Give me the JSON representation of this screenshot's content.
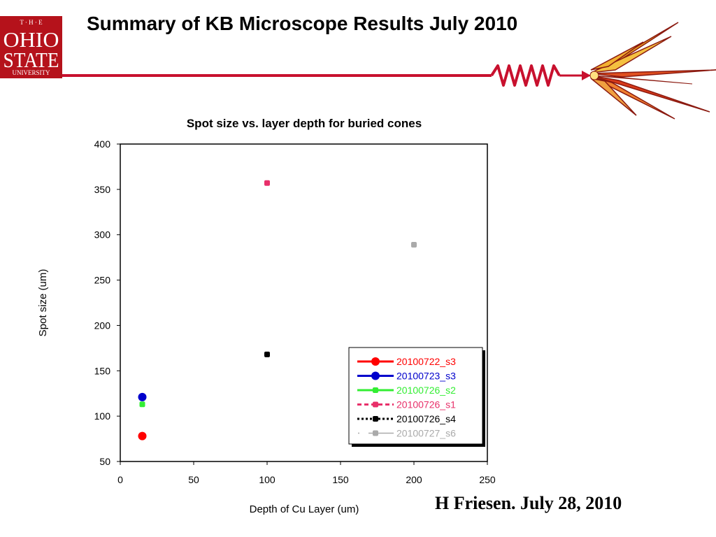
{
  "slide": {
    "title": "Summary of KB Microscope Results July 2010",
    "footer": "H Friesen. July 28, 2010",
    "logo": {
      "line1": "T · H · E",
      "line2": "OHIO",
      "line3": "STATE",
      "line4": "UNIVERSITY",
      "color": "#b5121b"
    },
    "accent_color": "#c8102e"
  },
  "chart_data": {
    "type": "scatter",
    "title": "Spot size vs. layer depth for buried cones",
    "xlabel": "Depth of Cu Layer (um)",
    "ylabel": "Spot size (um)",
    "xlim": [
      0,
      250
    ],
    "ylim": [
      50,
      400
    ],
    "xticks": [
      0,
      50,
      100,
      150,
      200,
      250
    ],
    "yticks": [
      50,
      100,
      150,
      200,
      250,
      300,
      350,
      400
    ],
    "grid": false,
    "legend_position": "bottom-right",
    "series": [
      {
        "name": "20100722_s3",
        "color": "#ff0000",
        "line": "solid",
        "marker": "circle-large",
        "points": [
          [
            15,
            78
          ]
        ]
      },
      {
        "name": "20100723_s3",
        "color": "#0000cc",
        "line": "solid",
        "marker": "circle-large",
        "points": [
          [
            15,
            121
          ]
        ]
      },
      {
        "name": "20100726_s2",
        "color": "#33ee33",
        "line": "solid",
        "marker": "square-small",
        "points": [
          [
            15,
            113
          ]
        ]
      },
      {
        "name": "20100726_s1",
        "color": "#e8306a",
        "line": "dashed",
        "marker": "square-small",
        "points": [
          [
            100,
            357
          ]
        ]
      },
      {
        "name": "20100726_s4",
        "color": "#000000",
        "line": "dotted",
        "marker": "square-small",
        "points": [
          [
            100,
            168
          ]
        ]
      },
      {
        "name": "20100727_s6",
        "color": "#aaaaaa",
        "line": "dot-solid",
        "marker": "square-small",
        "points": [
          [
            200,
            289
          ]
        ]
      }
    ]
  }
}
